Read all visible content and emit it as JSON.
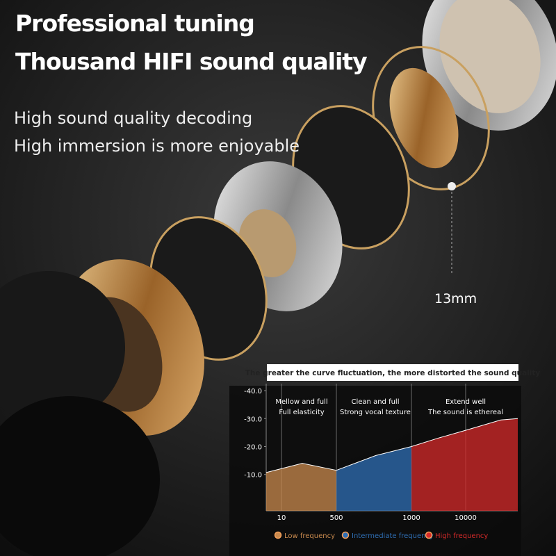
{
  "header": {
    "title_line1": "Professional tuning",
    "title_line2": "Thousand HIFI sound quality",
    "subtitle_line1": "High sound quality decoding",
    "subtitle_line2": "High immersion is more enjoyable"
  },
  "size_label": "13mm",
  "chart_data": {
    "type": "area",
    "title": "The greater the curve fluctuation, the more distorted the sound quality",
    "annotations": [
      [
        "Mellow and full",
        "Full elasticity"
      ],
      [
        "Clean and full",
        "Strong vocal texture"
      ],
      [
        "Extend well",
        "The sound is ethereal"
      ]
    ],
    "series": [
      {
        "name": "Low frequency",
        "color": "#c98a4e",
        "x": [
          3.4,
          44,
          500
        ],
        "values": [
          -10.7,
          -14,
          -11.5
        ]
      },
      {
        "name": "Intermediate frequency",
        "color": "#2f6fb5",
        "x": [
          500,
          720,
          1000
        ],
        "values": [
          -11.5,
          -16.8,
          -20
        ]
      },
      {
        "name": "High frequency",
        "color": "#d62a2a",
        "x": [
          1000,
          3100,
          10000,
          44000,
          90000
        ],
        "values": [
          -20,
          -23,
          -25.8,
          -29.5,
          -30
        ]
      }
    ],
    "xlim": [
      3.4,
      90000
    ],
    "xticks": [
      10,
      500,
      1000,
      10000
    ],
    "ylim": [
      3,
      -42.5
    ],
    "yticks": [
      {
        "value": -40,
        "label": "-40.0"
      },
      {
        "value": -30,
        "label": "-30.0"
      },
      {
        "value": -20,
        "label": "-20.0"
      },
      {
        "value": -10,
        "label": "-10.0"
      }
    ]
  }
}
